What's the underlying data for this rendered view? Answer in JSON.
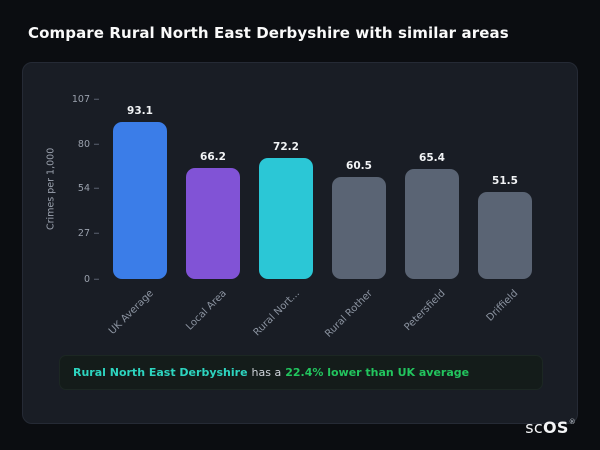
{
  "page": {
    "title": "Compare Rural North East Derbyshire with similar areas"
  },
  "chart_data": {
    "type": "bar",
    "title": "",
    "xlabel": "",
    "ylabel": "Crimes per 1,000",
    "ylim": [
      0,
      107
    ],
    "yticks": [
      0,
      27,
      54,
      80,
      107
    ],
    "grid": false,
    "legend": false,
    "categories": [
      "UK Average",
      "Local Area",
      "Rural Nort...",
      "Rural Rother",
      "Petersfield",
      "Driffield"
    ],
    "values": [
      93.1,
      66.2,
      72.2,
      60.5,
      65.4,
      51.5
    ],
    "value_labels": [
      "93.1",
      "66.2",
      "72.2",
      "60.5",
      "65.4",
      "51.5"
    ],
    "bar_colors": [
      "#3b7de8",
      "#8153d6",
      "#2bc7d6",
      "#5a6474",
      "#5a6474",
      "#5a6474"
    ]
  },
  "footer": {
    "area_name": "Rural North East Derbyshire",
    "connector": "has a",
    "stat": "22.4% lower than UK average",
    "area_color": "#2dd4bf",
    "stat_color": "#22c55e"
  },
  "logo": {
    "prefix": "sc",
    "suffix": "OS",
    "registered": "®"
  }
}
